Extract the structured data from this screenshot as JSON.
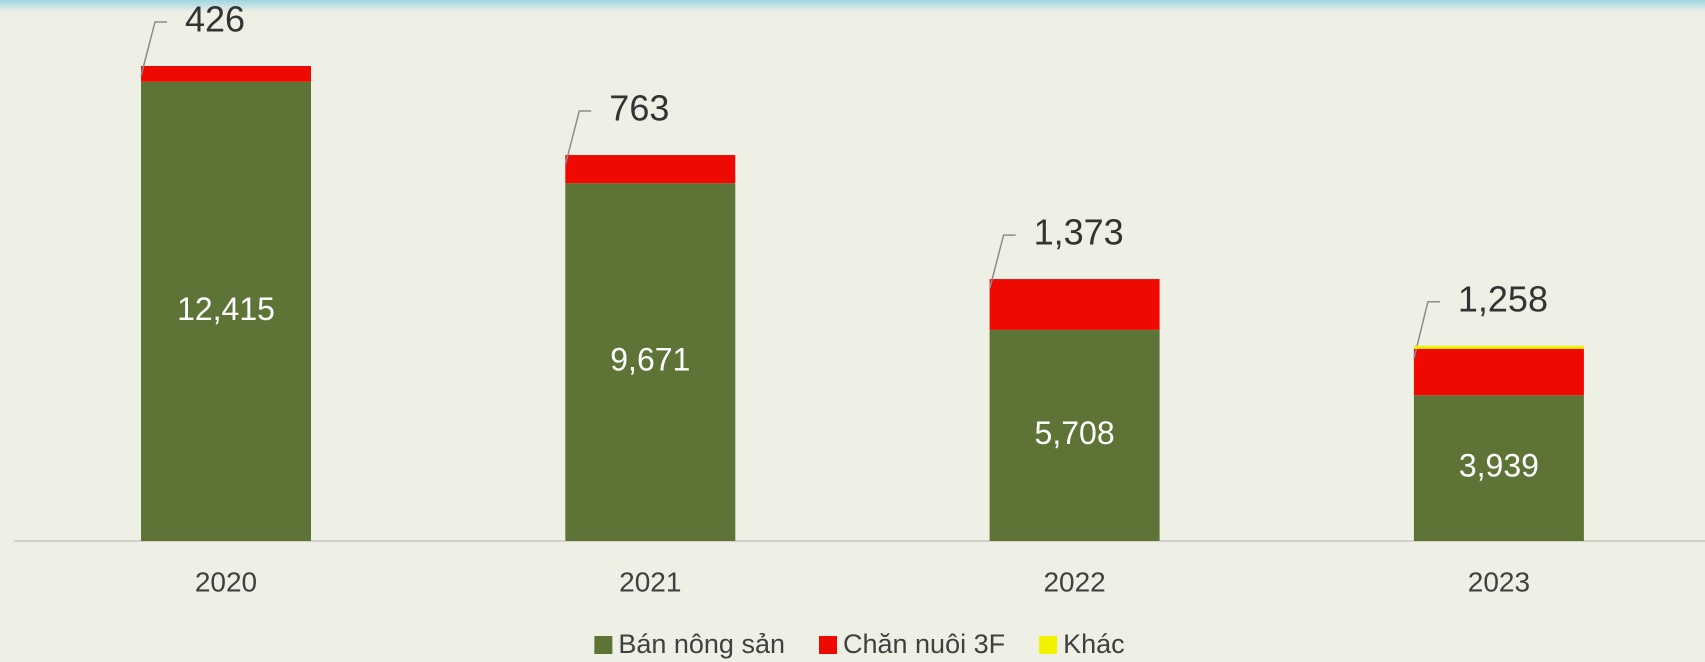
{
  "chart_data": {
    "type": "stacked-bar",
    "categories": [
      "2020",
      "2021",
      "2022",
      "2023"
    ],
    "series": [
      {
        "name": "Bán nông sản",
        "color": "#5e7436",
        "values": [
          12415,
          9671,
          5708,
          3939
        ],
        "value_labels": [
          "12,415",
          "9,671",
          "5,708",
          "3,939"
        ]
      },
      {
        "name": "Chăn nuôi 3F",
        "color": "#ee0a00",
        "values": [
          426,
          763,
          1373,
          1258
        ],
        "value_labels": [
          "426",
          "763",
          "1,373",
          "1,258"
        ]
      },
      {
        "name": "Khác",
        "color": "#f2f200",
        "values": [
          0,
          0,
          0,
          80
        ]
      }
    ],
    "legend": "bottom"
  }
}
